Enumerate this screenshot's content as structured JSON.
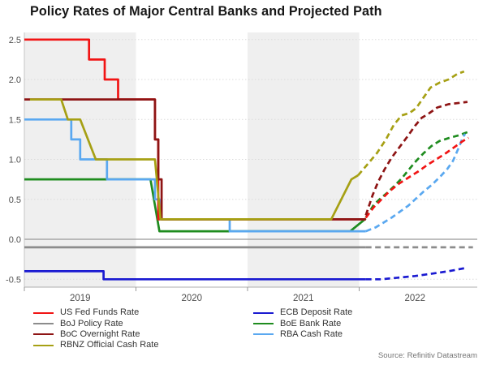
{
  "page": {
    "source": "Source: Refinitiv Datastream"
  },
  "chart_data": {
    "type": "line",
    "title": "Policy Rates of Major Central Banks and Projected Path",
    "xlabel": "",
    "ylabel": "",
    "x_axis": {
      "ticks": [
        2019,
        2020,
        2021,
        2022
      ],
      "range": [
        2019.0,
        2023.05
      ],
      "shaded_years": [
        2019,
        2021
      ],
      "shade_color": "#efefef"
    },
    "y_axis": {
      "ticks": [
        2.5,
        2.0,
        1.5,
        1.0,
        0.5,
        0.0,
        -0.5
      ],
      "range": [
        -0.65,
        2.6
      ],
      "unit": "percent",
      "grid": "dotted"
    },
    "projection_start": 2022.06,
    "projection_style": "dashed",
    "series": [
      {
        "id": "boj",
        "name": "BoJ Policy Rate",
        "color": "#8c8c8c",
        "solid": [
          [
            2019.0,
            -0.1
          ],
          [
            2022.06,
            -0.1
          ]
        ],
        "projected": [
          [
            2022.06,
            -0.1
          ],
          [
            2023.02,
            -0.1
          ]
        ]
      },
      {
        "id": "ecb",
        "name": "ECB Deposit Rate",
        "color": "#1a1ad1",
        "solid": [
          [
            2019.0,
            -0.4
          ],
          [
            2019.71,
            -0.4
          ],
          [
            2019.71,
            -0.5
          ],
          [
            2022.06,
            -0.5
          ]
        ],
        "projected": [
          [
            2022.06,
            -0.5
          ],
          [
            2022.2,
            -0.5
          ],
          [
            2022.35,
            -0.48
          ],
          [
            2022.5,
            -0.46
          ],
          [
            2022.65,
            -0.43
          ],
          [
            2022.8,
            -0.4
          ],
          [
            2022.95,
            -0.36
          ]
        ]
      },
      {
        "id": "boe",
        "name": "BoE Bank Rate",
        "color": "#1f8c1f",
        "solid": [
          [
            2019.0,
            0.75
          ],
          [
            2020.13,
            0.75
          ],
          [
            2020.21,
            0.1
          ],
          [
            2021.92,
            0.1
          ],
          [
            2022.06,
            0.26
          ]
        ],
        "projected": [
          [
            2022.06,
            0.27
          ],
          [
            2022.13,
            0.43
          ],
          [
            2022.19,
            0.51
          ],
          [
            2022.25,
            0.58
          ],
          [
            2022.31,
            0.66
          ],
          [
            2022.38,
            0.76
          ],
          [
            2022.45,
            0.88
          ],
          [
            2022.51,
            0.98
          ],
          [
            2022.58,
            1.08
          ],
          [
            2022.65,
            1.17
          ],
          [
            2022.72,
            1.23
          ],
          [
            2022.81,
            1.27
          ],
          [
            2022.89,
            1.3
          ],
          [
            2022.99,
            1.35
          ]
        ]
      },
      {
        "id": "rba",
        "name": "RBA Cash Rate",
        "color": "#5aa8f0",
        "solid": [
          [
            2019.0,
            1.5
          ],
          [
            2019.42,
            1.5
          ],
          [
            2019.42,
            1.25
          ],
          [
            2019.5,
            1.25
          ],
          [
            2019.5,
            1.0
          ],
          [
            2019.74,
            1.0
          ],
          [
            2019.74,
            0.75
          ],
          [
            2020.17,
            0.75
          ],
          [
            2020.17,
            0.5
          ],
          [
            2020.21,
            0.5
          ],
          [
            2020.21,
            0.25
          ],
          [
            2020.84,
            0.25
          ],
          [
            2020.84,
            0.1
          ],
          [
            2022.06,
            0.1
          ]
        ],
        "projected": [
          [
            2022.06,
            0.1
          ],
          [
            2022.15,
            0.15
          ],
          [
            2022.22,
            0.21
          ],
          [
            2022.29,
            0.27
          ],
          [
            2022.36,
            0.34
          ],
          [
            2022.44,
            0.42
          ],
          [
            2022.51,
            0.51
          ],
          [
            2022.58,
            0.6
          ],
          [
            2022.65,
            0.68
          ],
          [
            2022.73,
            0.79
          ],
          [
            2022.79,
            0.88
          ],
          [
            2022.84,
            0.98
          ],
          [
            2022.89,
            1.14
          ],
          [
            2022.93,
            1.28
          ],
          [
            2022.95,
            1.32
          ]
        ]
      },
      {
        "id": "fed",
        "name": "US Fed Funds Rate",
        "color": "#f11414",
        "solid": [
          [
            2019.0,
            2.5
          ],
          [
            2019.58,
            2.5
          ],
          [
            2019.58,
            2.25
          ],
          [
            2019.72,
            2.25
          ],
          [
            2019.72,
            2.0
          ],
          [
            2019.84,
            2.0
          ],
          [
            2019.84,
            1.75
          ],
          [
            2020.17,
            1.75
          ],
          [
            2020.17,
            1.25
          ],
          [
            2020.2,
            1.25
          ],
          [
            2020.2,
            0.25
          ],
          [
            2022.06,
            0.25
          ]
        ],
        "projected": [
          [
            2022.06,
            0.27
          ],
          [
            2022.13,
            0.4
          ],
          [
            2022.2,
            0.5
          ],
          [
            2022.27,
            0.6
          ],
          [
            2022.36,
            0.7
          ],
          [
            2022.45,
            0.78
          ],
          [
            2022.53,
            0.85
          ],
          [
            2022.61,
            0.93
          ],
          [
            2022.69,
            1.0
          ],
          [
            2022.78,
            1.08
          ],
          [
            2022.85,
            1.15
          ],
          [
            2022.93,
            1.23
          ],
          [
            2022.98,
            1.27
          ]
        ]
      },
      {
        "id": "boc",
        "name": "BoC Overnight Rate",
        "color": "#8e1414",
        "solid": [
          [
            2019.0,
            1.75
          ],
          [
            2020.17,
            1.75
          ],
          [
            2020.17,
            1.25
          ],
          [
            2020.2,
            1.25
          ],
          [
            2020.2,
            0.75
          ],
          [
            2020.23,
            0.75
          ],
          [
            2020.23,
            0.25
          ],
          [
            2022.06,
            0.25
          ]
        ],
        "projected": [
          [
            2022.06,
            0.3
          ],
          [
            2022.12,
            0.55
          ],
          [
            2022.17,
            0.72
          ],
          [
            2022.23,
            0.88
          ],
          [
            2022.29,
            1.02
          ],
          [
            2022.36,
            1.15
          ],
          [
            2022.44,
            1.3
          ],
          [
            2022.5,
            1.42
          ],
          [
            2022.56,
            1.52
          ],
          [
            2022.63,
            1.58
          ],
          [
            2022.7,
            1.65
          ],
          [
            2022.8,
            1.69
          ],
          [
            2022.97,
            1.72
          ]
        ]
      },
      {
        "id": "rbnz",
        "name": "RBNZ Official Cash Rate",
        "color": "#a6a014",
        "solid": [
          [
            2019.05,
            1.75
          ],
          [
            2019.33,
            1.75
          ],
          [
            2019.39,
            1.5
          ],
          [
            2019.5,
            1.5
          ],
          [
            2019.64,
            1.0
          ],
          [
            2020.17,
            1.0
          ],
          [
            2020.22,
            0.25
          ],
          [
            2021.75,
            0.25
          ],
          [
            2021.93,
            0.75
          ],
          [
            2021.99,
            0.8
          ]
        ],
        "projected": [
          [
            2021.99,
            0.8
          ],
          [
            2022.07,
            0.93
          ],
          [
            2022.16,
            1.08
          ],
          [
            2022.24,
            1.25
          ],
          [
            2022.31,
            1.43
          ],
          [
            2022.38,
            1.55
          ],
          [
            2022.45,
            1.58
          ],
          [
            2022.51,
            1.64
          ],
          [
            2022.58,
            1.78
          ],
          [
            2022.64,
            1.9
          ],
          [
            2022.72,
            1.96
          ],
          [
            2022.8,
            2.0
          ],
          [
            2022.88,
            2.07
          ],
          [
            2022.94,
            2.1
          ]
        ]
      }
    ],
    "legend": {
      "columns": [
        [
          "fed",
          "boj",
          "boc",
          "rbnz"
        ],
        [
          "ecb",
          "boe",
          "rba"
        ]
      ]
    }
  }
}
